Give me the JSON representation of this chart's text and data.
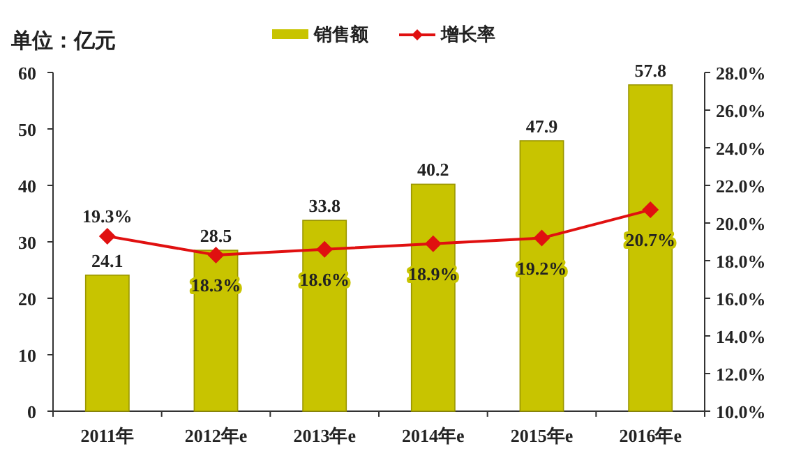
{
  "chart_data": {
    "type": "bar",
    "ylabel": "单位：亿元",
    "categories": [
      "2011年",
      "2012年e",
      "2013年e",
      "2014年e",
      "2015年e",
      "2016年e"
    ],
    "series": [
      {
        "name": "销售额",
        "color": "#c8c400",
        "values": [
          24.1,
          28.5,
          33.8,
          40.2,
          47.9,
          57.8
        ],
        "value_labels": [
          "24.1",
          "28.5",
          "33.8",
          "40.2",
          "47.9",
          "57.8"
        ]
      },
      {
        "name": "增长率",
        "type": "line",
        "axis": "y2",
        "color": "#e01010",
        "marker": "diamond",
        "values": [
          19.3,
          18.3,
          18.6,
          18.9,
          19.2,
          20.7
        ],
        "value_labels": [
          "19.3%",
          "18.3%",
          "18.6%",
          "18.9%",
          "19.2%",
          "20.7%"
        ]
      }
    ],
    "ylim": [
      0,
      60
    ],
    "yticks": [
      0,
      10,
      20,
      30,
      40,
      50,
      60
    ],
    "y2lim": [
      10,
      28
    ],
    "y2ticks": [
      {
        "value": 10,
        "label": "10.0%"
      },
      {
        "value": 12,
        "label": "12.0%"
      },
      {
        "value": 14,
        "label": "14.0%"
      },
      {
        "value": 16,
        "label": "16.0%"
      },
      {
        "value": 18,
        "label": "18.0%"
      },
      {
        "value": 20,
        "label": "20.0%"
      },
      {
        "value": 22,
        "label": "22.0%"
      },
      {
        "value": 24,
        "label": "24.0%"
      },
      {
        "value": 26,
        "label": "26.0%"
      },
      {
        "value": 28,
        "label": "28.0%"
      }
    ],
    "legend": "top",
    "grid": false
  }
}
